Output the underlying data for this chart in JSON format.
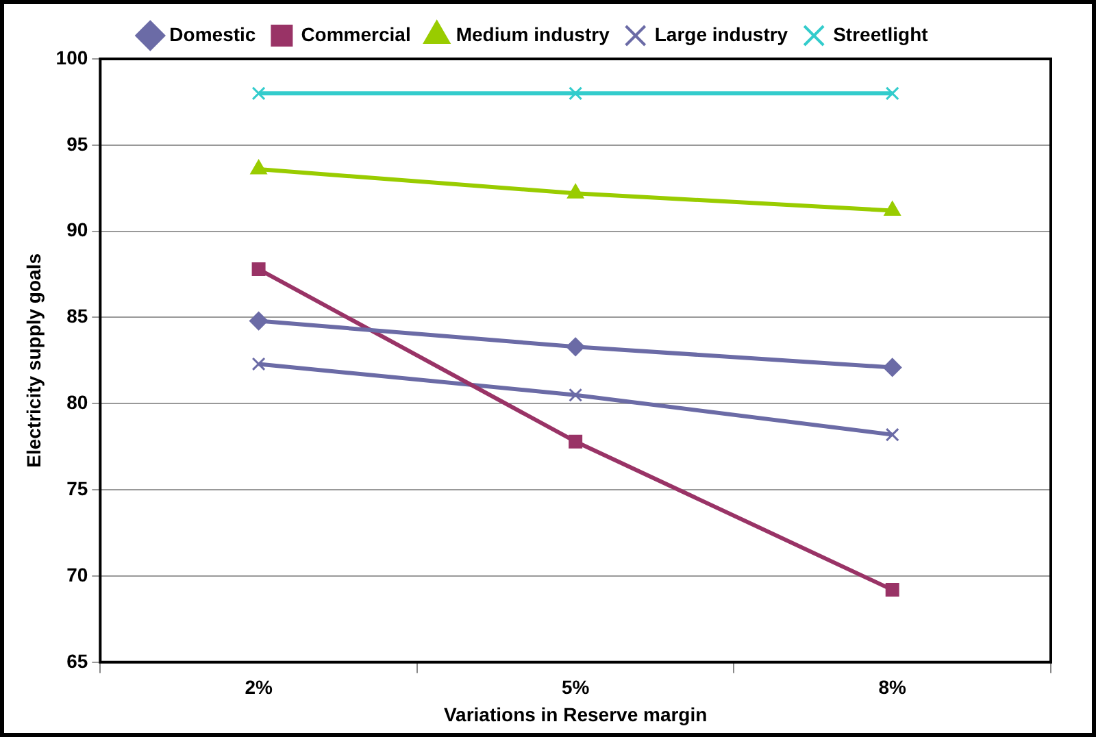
{
  "chart_data": {
    "type": "line",
    "xlabel": "Variations in Reserve margin",
    "ylabel": "Electricity supply goals",
    "categories": [
      "2%",
      "5%",
      "8%"
    ],
    "series": [
      {
        "name": "Domestic",
        "color": "#6b6ba6",
        "marker": "diamond",
        "values": [
          84.8,
          83.3,
          82.1
        ]
      },
      {
        "name": "Commercial",
        "color": "#993366",
        "marker": "square",
        "values": [
          87.8,
          77.8,
          69.2
        ]
      },
      {
        "name": "Medium industry",
        "color": "#99cc00",
        "marker": "triangle",
        "values": [
          93.6,
          92.2,
          91.2
        ]
      },
      {
        "name": "Large industry",
        "color": "#6b6ba6",
        "marker": "cross",
        "values": [
          82.3,
          80.5,
          78.2
        ]
      },
      {
        "name": "Streetlight",
        "color": "#33cccc",
        "marker": "cross",
        "values": [
          98,
          98,
          98
        ]
      }
    ],
    "ylim": [
      65,
      100
    ],
    "yticks": [
      65,
      70,
      75,
      80,
      85,
      90,
      95,
      100
    ],
    "grid": "y",
    "legend": "top"
  }
}
